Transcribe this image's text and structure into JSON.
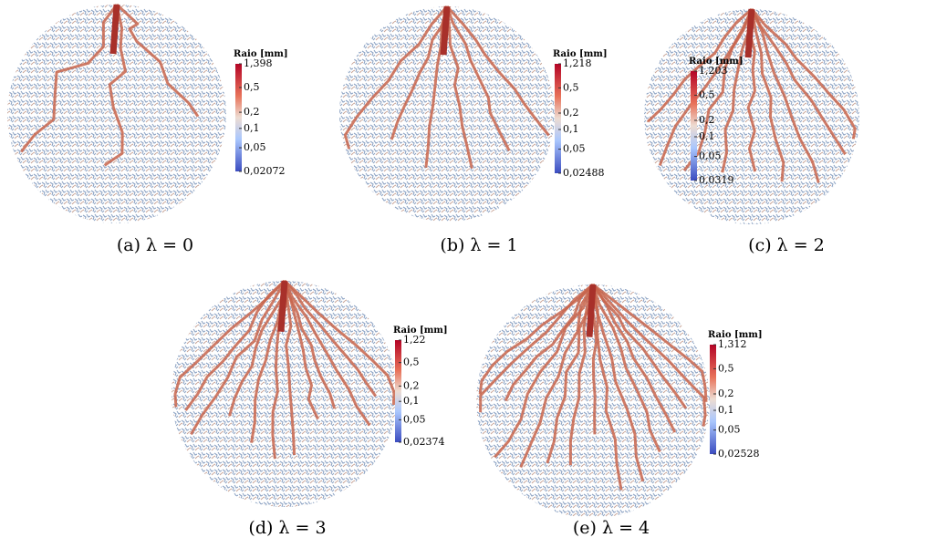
{
  "panels": [
    {
      "caption": "(a) λ = 0",
      "colorbar": {
        "title": "Raio [mm]",
        "ticks": [
          "1,398",
          "0,5",
          "0,2",
          "0,1",
          "0,05",
          "0,02072"
        ]
      }
    },
    {
      "caption": "(b) λ = 1",
      "colorbar": {
        "title": "Raio [mm]",
        "ticks": [
          "1,218",
          "0,5",
          "0,2",
          "0,1",
          "0,05",
          "0,02488"
        ]
      }
    },
    {
      "caption": "(c) λ = 2",
      "colorbar": {
        "title": "Raio [mm]",
        "ticks": [
          "1,203",
          "0,5",
          "0,2",
          "0,1",
          "0,05",
          "0,0319"
        ]
      }
    },
    {
      "caption": "(d) λ = 3",
      "colorbar": {
        "title": "Raio [mm]",
        "ticks": [
          "1,22",
          "0,5",
          "0,2",
          "0,1",
          "0,05",
          "0,02374"
        ]
      }
    },
    {
      "caption": "(e) λ = 4",
      "colorbar": {
        "title": "Raio [mm]",
        "ticks": [
          "1,312",
          "0,5",
          "0,2",
          "0,1",
          "0,05",
          "0,02528"
        ]
      }
    }
  ]
}
